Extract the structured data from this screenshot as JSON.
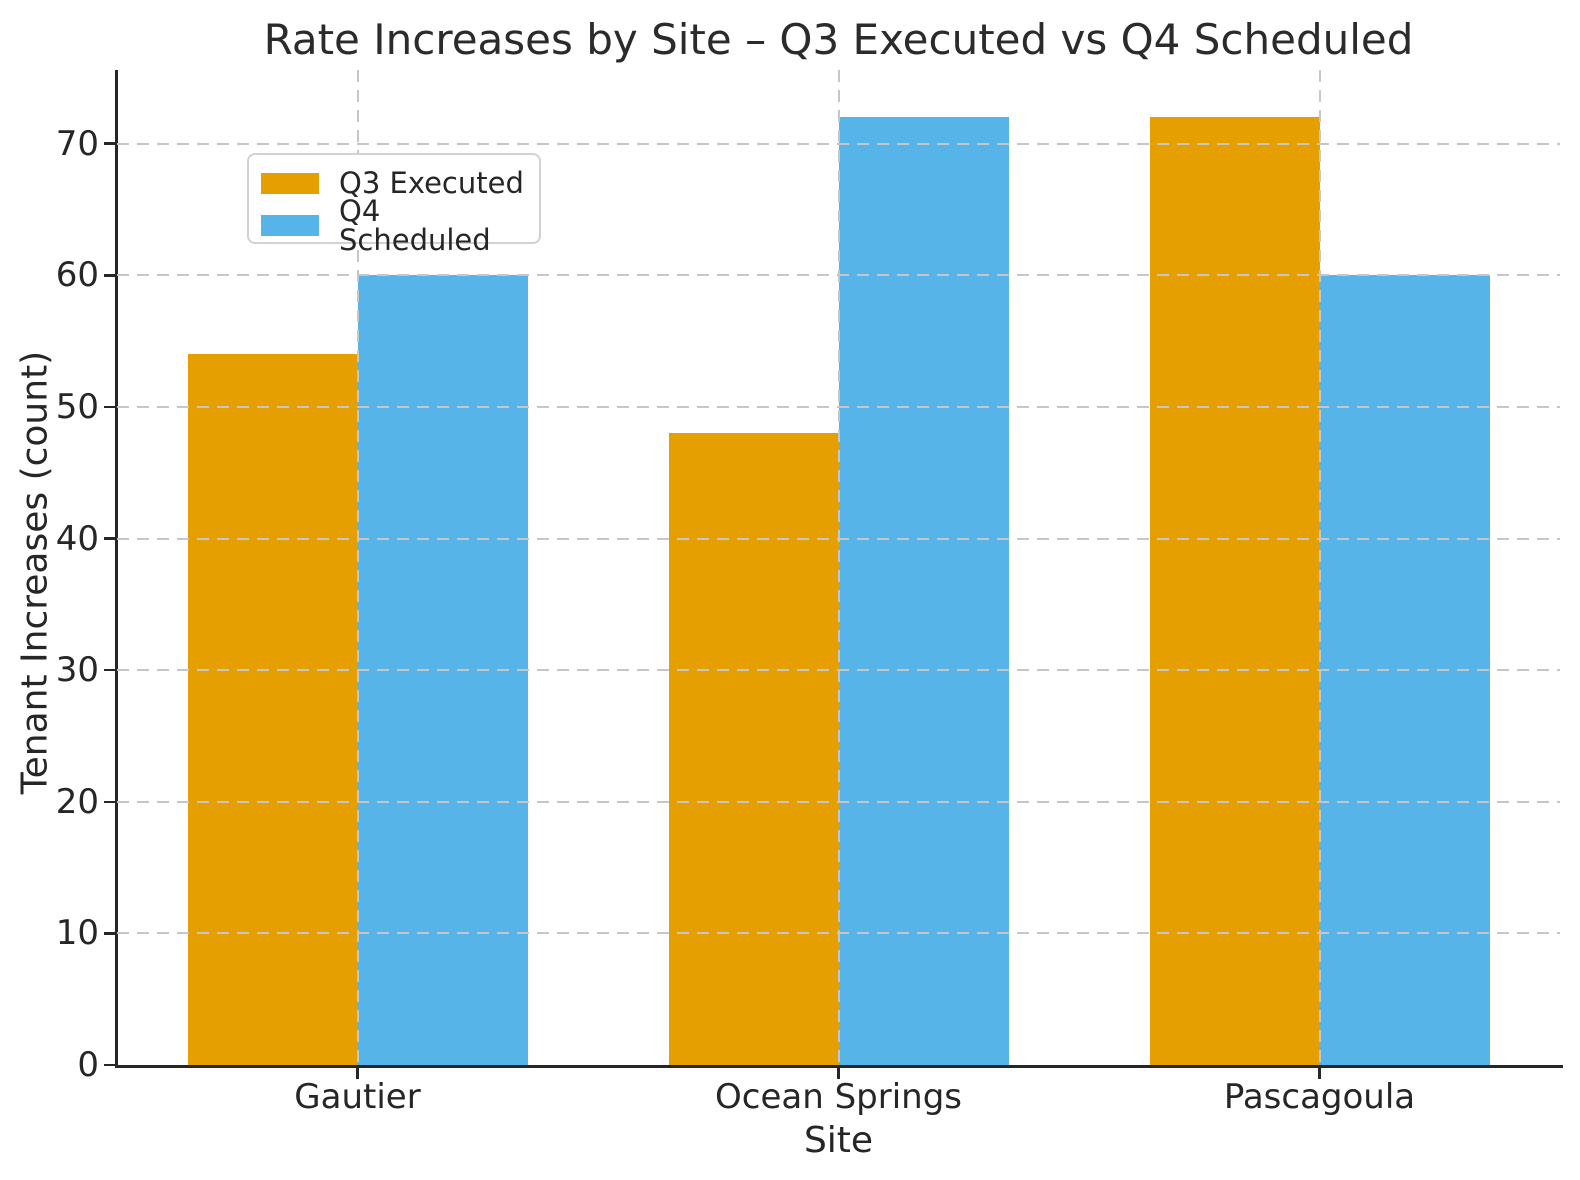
{
  "chart_data": {
    "type": "bar",
    "title": "Rate Increases by Site – Q3 Executed vs Q4 Scheduled",
    "xlabel": "Site",
    "ylabel": "Tenant Increases (count)",
    "categories": [
      "Gautier",
      "Ocean Springs",
      "Pascagoula"
    ],
    "series": [
      {
        "name": "Q3 Executed",
        "color": "#E69F00",
        "values": [
          54,
          48,
          72
        ]
      },
      {
        "name": "Q4 Scheduled",
        "color": "#56B4E9",
        "values": [
          60,
          72,
          60
        ]
      }
    ],
    "ylim": [
      0,
      75.6
    ],
    "yticks": [
      0,
      10,
      20,
      30,
      40,
      50,
      60,
      70
    ],
    "grid": true,
    "grid_style": "dashed",
    "grid_above_bars": true,
    "legend_position": "upper left",
    "colors": {
      "spine": "#262626",
      "grid": "#c6c6c6",
      "text": "#262626"
    }
  }
}
